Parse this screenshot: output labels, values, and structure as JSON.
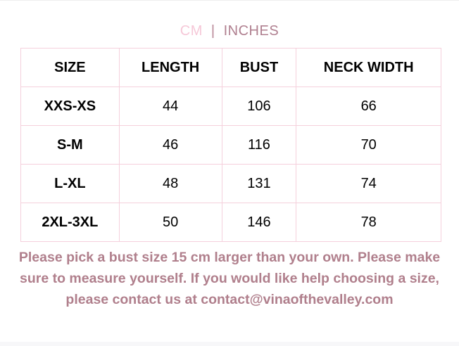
{
  "units": {
    "cm": "CM",
    "separator": "|",
    "inches": "INCHES",
    "active": "INCHES"
  },
  "table": {
    "headers": [
      "SIZE",
      "LENGTH",
      "BUST",
      "NECK WIDTH"
    ],
    "rows": [
      [
        "XXS-XS",
        "44",
        "106",
        "66"
      ],
      [
        "S-M",
        "46",
        "116",
        "70"
      ],
      [
        "L-XL",
        "48",
        "131",
        "74"
      ],
      [
        "2XL-3XL",
        "50",
        "146",
        "78"
      ]
    ]
  },
  "note": "Please pick a bust size 15 cm larger than your own. Please make sure to measure yourself. If you would like help choosing a size, please contact us at contact@vinaofthevalley.com",
  "colors": {
    "accent": "#b07f8c",
    "cm": "#f6c8d8",
    "border": "#f5d0dc"
  }
}
